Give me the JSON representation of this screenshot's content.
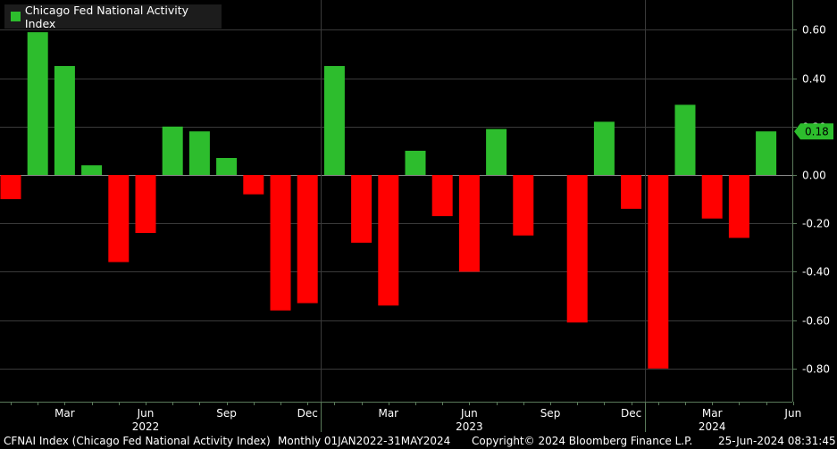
{
  "legend": {
    "label": "Chicago Fed National Activity Index",
    "color": "#2dbd2d"
  },
  "current_value_label": "0.18",
  "footer": {
    "ticker": "CFNAI Index (Chicago Fed National Activity Index)",
    "range": "Monthly 01JAN2022-31MAY2024",
    "copyright": "Copyright© 2024 Bloomberg Finance L.P.",
    "timestamp": "25-Jun-2024 08:31:45"
  },
  "colors": {
    "positive": "#2dbd2d",
    "negative": "#ff0000",
    "grid": "#3a3a3a",
    "zero_line": "#8a8a8a",
    "axis": "#5a7a5a",
    "badge": "#2dbd2d"
  },
  "chart_data": {
    "type": "bar",
    "title": "Chicago Fed National Activity Index",
    "categories": [
      "Jan 2022",
      "Feb 2022",
      "Mar 2022",
      "Apr 2022",
      "May 2022",
      "Jun 2022",
      "Jul 2022",
      "Aug 2022",
      "Sep 2022",
      "Oct 2022",
      "Nov 2022",
      "Dec 2022",
      "Jan 2023",
      "Feb 2023",
      "Mar 2023",
      "Apr 2023",
      "May 2023",
      "Jun 2023",
      "Jul 2023",
      "Aug 2023",
      "Sep 2023",
      "Oct 2023",
      "Nov 2023",
      "Dec 2023",
      "Jan 2024",
      "Feb 2024",
      "Mar 2024",
      "Apr 2024",
      "May 2024"
    ],
    "values": [
      -0.1,
      0.59,
      0.45,
      0.04,
      -0.36,
      -0.24,
      0.2,
      0.18,
      0.07,
      -0.08,
      -0.56,
      -0.53,
      0.45,
      -0.28,
      -0.54,
      0.1,
      -0.17,
      -0.4,
      0.19,
      -0.25,
      0.0,
      -0.61,
      0.22,
      -0.14,
      -0.8,
      0.29,
      -0.18,
      -0.26,
      0.18
    ],
    "ylim": [
      -0.88,
      0.72
    ],
    "yticks": [
      0.6,
      0.4,
      0.2,
      0.0,
      -0.2,
      -0.4,
      -0.6,
      -0.8
    ],
    "ytick_labels": [
      "0.60",
      "0.40",
      "0.20",
      "0.00",
      "-0.20",
      "-0.40",
      "-0.60",
      "-0.80"
    ],
    "month_ticks": [
      {
        "label": "Mar",
        "index": 2
      },
      {
        "label": "Jun",
        "index": 5
      },
      {
        "label": "Sep",
        "index": 8
      },
      {
        "label": "Dec",
        "index": 11
      },
      {
        "label": "Mar",
        "index": 14
      },
      {
        "label": "Jun",
        "index": 17
      },
      {
        "label": "Sep",
        "index": 20
      },
      {
        "label": "Dec",
        "index": 23
      },
      {
        "label": "Mar",
        "index": 26
      },
      {
        "label": "Jun",
        "index": 29
      }
    ],
    "year_labels": [
      {
        "label": "2022",
        "index": 5
      },
      {
        "label": "2023",
        "index": 17
      },
      {
        "label": "2024",
        "index": 26
      }
    ],
    "year_separators": [
      11.5,
      23.5
    ],
    "xlabel": "",
    "ylabel": ""
  }
}
